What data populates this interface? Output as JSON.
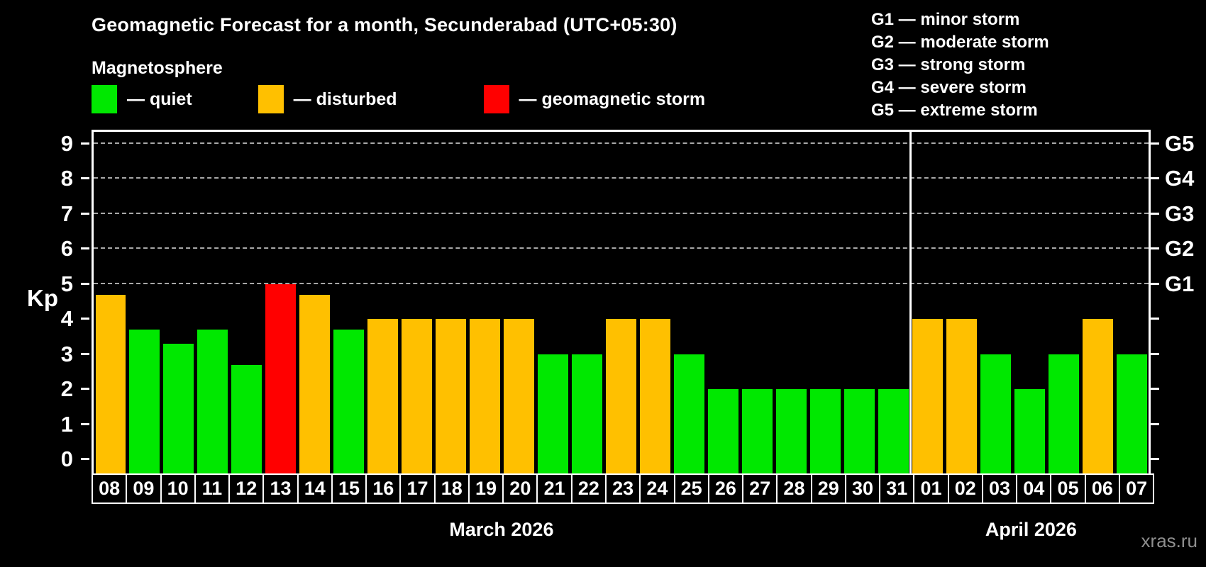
{
  "header": {
    "title": "Geomagnetic Forecast for a month, Secunderabad (UTC+05:30)",
    "subtitle": "Magnetosphere"
  },
  "legend": {
    "items": [
      {
        "key": "quiet",
        "label": "— quiet",
        "color": "#00e800"
      },
      {
        "key": "disturbed",
        "label": "— disturbed",
        "color": "#ffc000"
      },
      {
        "key": "storm",
        "label": "— geomagnetic storm",
        "color": "#ff0000"
      }
    ]
  },
  "storm_scale_legend": {
    "items": [
      "G1 — minor storm",
      "G2 — moderate storm",
      "G3 — strong storm",
      "G4 — severe storm",
      "G5 — extreme storm"
    ]
  },
  "chart_data": {
    "type": "bar",
    "ylabel": "Kp",
    "ylim": [
      -0.4,
      9.4
    ],
    "yticks": [
      0,
      1,
      2,
      3,
      4,
      5,
      6,
      7,
      8,
      9
    ],
    "gridlines_at_kp": [
      5,
      6,
      7,
      8,
      9
    ],
    "grid_style": "horizontal dashed gray, only at Kp 5-9",
    "right_axis_labels": [
      {
        "label": "G1",
        "kp": 5
      },
      {
        "label": "G2",
        "kp": 6
      },
      {
        "label": "G3",
        "kp": 7
      },
      {
        "label": "G4",
        "kp": 8
      },
      {
        "label": "G5",
        "kp": 9
      }
    ],
    "groups": [
      {
        "month_label": "March 2026",
        "days": [
          {
            "day": "08",
            "kp": 4.7,
            "state": "disturbed"
          },
          {
            "day": "09",
            "kp": 3.7,
            "state": "quiet"
          },
          {
            "day": "10",
            "kp": 3.3,
            "state": "quiet"
          },
          {
            "day": "11",
            "kp": 3.7,
            "state": "quiet"
          },
          {
            "day": "12",
            "kp": 2.7,
            "state": "quiet"
          },
          {
            "day": "13",
            "kp": 5.0,
            "state": "storm"
          },
          {
            "day": "14",
            "kp": 4.7,
            "state": "disturbed"
          },
          {
            "day": "15",
            "kp": 3.7,
            "state": "quiet"
          },
          {
            "day": "16",
            "kp": 4.0,
            "state": "disturbed"
          },
          {
            "day": "17",
            "kp": 4.0,
            "state": "disturbed"
          },
          {
            "day": "18",
            "kp": 4.0,
            "state": "disturbed"
          },
          {
            "day": "19",
            "kp": 4.0,
            "state": "disturbed"
          },
          {
            "day": "20",
            "kp": 4.0,
            "state": "disturbed"
          },
          {
            "day": "21",
            "kp": 3.0,
            "state": "quiet"
          },
          {
            "day": "22",
            "kp": 3.0,
            "state": "quiet"
          },
          {
            "day": "23",
            "kp": 4.0,
            "state": "disturbed"
          },
          {
            "day": "24",
            "kp": 4.0,
            "state": "disturbed"
          },
          {
            "day": "25",
            "kp": 3.0,
            "state": "quiet"
          },
          {
            "day": "26",
            "kp": 2.0,
            "state": "quiet"
          },
          {
            "day": "27",
            "kp": 2.0,
            "state": "quiet"
          },
          {
            "day": "28",
            "kp": 2.0,
            "state": "quiet"
          },
          {
            "day": "29",
            "kp": 2.0,
            "state": "quiet"
          },
          {
            "day": "30",
            "kp": 2.0,
            "state": "quiet"
          },
          {
            "day": "31",
            "kp": 2.0,
            "state": "quiet"
          }
        ]
      },
      {
        "month_label": "April 2026",
        "days": [
          {
            "day": "01",
            "kp": 4.0,
            "state": "disturbed"
          },
          {
            "day": "02",
            "kp": 4.0,
            "state": "disturbed"
          },
          {
            "day": "03",
            "kp": 3.0,
            "state": "quiet"
          },
          {
            "day": "04",
            "kp": 2.0,
            "state": "quiet"
          },
          {
            "day": "05",
            "kp": 3.0,
            "state": "quiet"
          },
          {
            "day": "06",
            "kp": 4.0,
            "state": "disturbed"
          },
          {
            "day": "07",
            "kp": 3.0,
            "state": "quiet"
          }
        ]
      }
    ],
    "legend_position": "top-left",
    "background": "#000000"
  },
  "colors": {
    "quiet": "#00e800",
    "disturbed": "#ffc000",
    "storm": "#ff0000",
    "axis": "#ffffff",
    "grid": "#a8a8a8",
    "background": "#000000",
    "watermark_text": "#8f8f8f"
  },
  "watermark": "xras.ru"
}
